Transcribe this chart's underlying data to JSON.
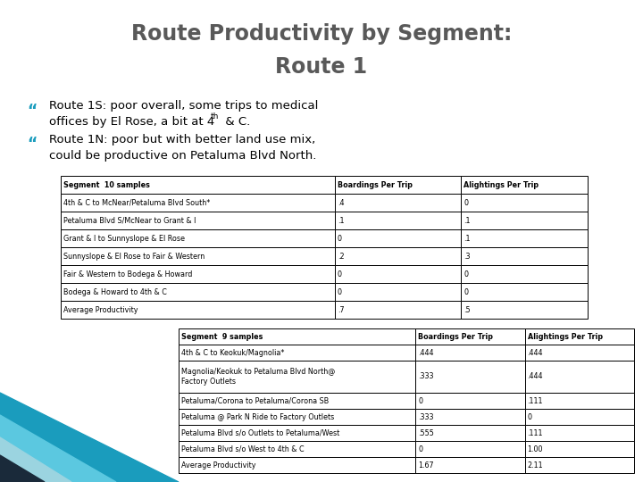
{
  "title_line1": "Route Productivity by Segment:",
  "title_line2": "Route 1",
  "title_color": "#595959",
  "title_fontsize": 17,
  "bullet_color": "#1a9cbd",
  "body_fontsize": 9.5,
  "bullet1_main": "Route 1S: poor overall, some trips to medical\noffices by El Rose, a bit at 4",
  "bullet1_sup": "th",
  "bullet1_tail": " & C.",
  "bullet2_text": "Route 1N: poor but with better land use mix,\ncould be productive on Petaluma Blvd North.",
  "table1_header": [
    "Segment  10 samples",
    "Boardings Per Trip",
    "Alightings Per Trip"
  ],
  "table1_rows": [
    [
      "4th & C to McNear/Petaluma Blvd South*",
      ".4",
      "0"
    ],
    [
      "Petaluma Blvd S/McNear to Grant & I",
      ".1",
      ".1"
    ],
    [
      "Grant & I to Sunnyslope & El Rose",
      "0",
      ".1"
    ],
    [
      "Sunnyslope & El Rose to Fair & Western",
      ".2",
      ".3"
    ],
    [
      "Fair & Western to Bodega & Howard",
      "0",
      "0"
    ],
    [
      "Bodega & Howard to 4th & C",
      "0",
      "0"
    ],
    [
      "Average Productivity",
      ".7",
      ".5"
    ]
  ],
  "table2_header": [
    "Segment  9 samples",
    "Boardings Per Trip",
    "Alightings Per Trip"
  ],
  "table2_rows": [
    [
      "4th & C to Keokuk/Magnolia*",
      ".444",
      ".444"
    ],
    [
      "Magnolia/Keokuk to Petaluma Blvd North@\nFactory Outlets",
      ".333",
      ".444"
    ],
    [
      "Petaluma/Corona to Petaluma/Corona SB",
      "0",
      ".111"
    ],
    [
      "Petaluma @ Park N Ride to Factory Outlets",
      ".333",
      "0"
    ],
    [
      "Petaluma Blvd s/o Outlets to Petaluma/West",
      ".555",
      ".111"
    ],
    [
      "Petaluma Blvd s/o West to 4th & C",
      "0",
      "1.00"
    ],
    [
      "Average Productivity",
      "1.67",
      "2.11"
    ]
  ],
  "bg_color": "#ffffff",
  "table_font_size": 5.8,
  "tri_colors": [
    "#1a9cbd",
    "#5bc8e0",
    "#9bd4e0",
    "#1a2a3a"
  ]
}
